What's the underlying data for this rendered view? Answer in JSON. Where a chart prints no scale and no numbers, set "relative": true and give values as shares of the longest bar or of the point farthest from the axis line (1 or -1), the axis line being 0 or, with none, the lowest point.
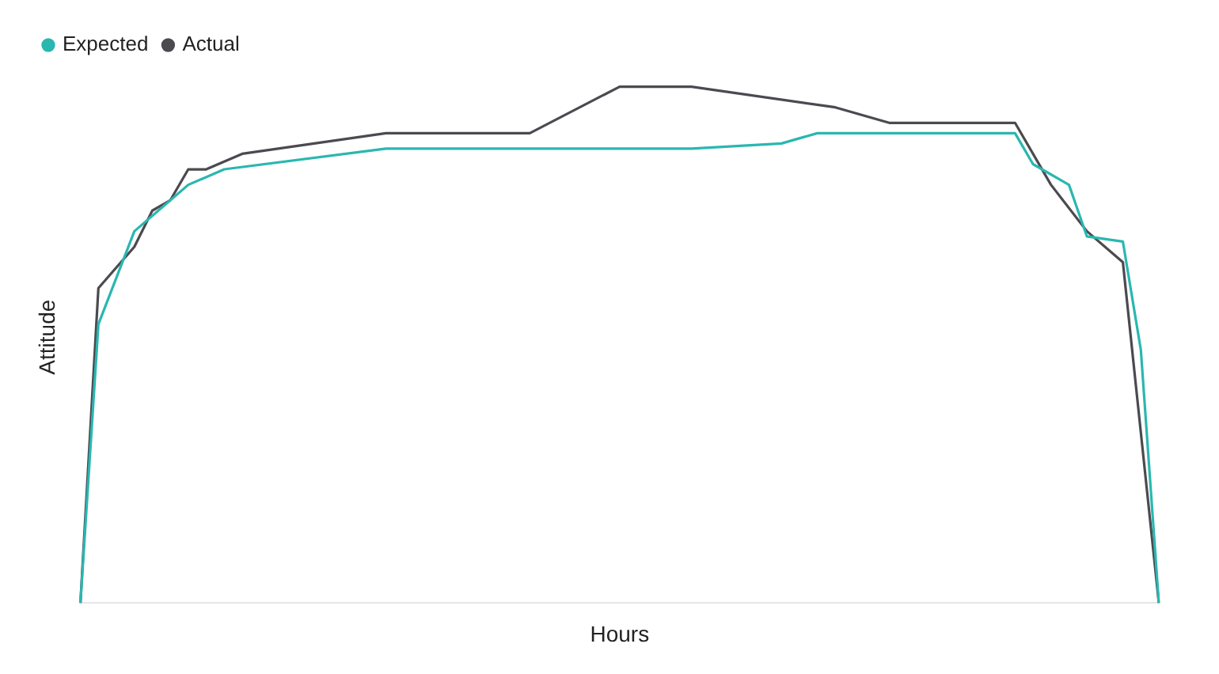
{
  "chart_data": {
    "type": "line",
    "xlabel": "Hours",
    "ylabel": "Attitude",
    "relative": true,
    "legend": "top left",
    "marker": "none",
    "line_style": "solid",
    "categories": [
      null,
      null,
      null,
      null,
      null,
      null,
      null,
      null,
      null,
      null,
      null,
      null,
      null,
      null,
      null,
      null,
      null,
      null,
      null,
      null,
      null,
      null,
      null,
      null,
      null,
      null,
      null,
      null,
      null,
      null,
      null,
      null,
      null,
      null,
      null,
      null,
      null,
      null,
      null,
      null,
      null,
      null,
      null,
      null,
      null,
      null,
      null,
      null,
      null,
      null,
      null,
      null,
      null,
      null,
      null,
      null,
      null,
      null,
      null,
      null,
      null
    ],
    "series": [
      {
        "name": "Expected",
        "color": "#2ab7b0",
        "values": [
          0,
          0.54,
          null,
          0.72,
          null,
          null,
          0.81,
          null,
          0.84,
          null,
          null,
          null,
          null,
          null,
          null,
          null,
          null,
          0.88,
          null,
          null,
          null,
          null,
          null,
          null,
          null,
          null,
          null,
          null,
          null,
          null,
          null,
          null,
          null,
          null,
          0.88,
          null,
          null,
          null,
          null,
          0.89,
          null,
          0.91,
          null,
          null,
          null,
          null,
          null,
          null,
          null,
          null,
          null,
          null,
          0.91,
          0.85,
          null,
          0.81,
          0.71,
          null,
          0.7,
          0.49,
          0
        ]
      },
      {
        "name": "Actual",
        "color": "#4a4a50",
        "values": [
          0,
          0.61,
          null,
          0.69,
          0.76,
          0.78,
          0.84,
          0.84,
          null,
          0.87,
          null,
          null,
          null,
          null,
          null,
          null,
          null,
          0.91,
          null,
          null,
          null,
          null,
          null,
          null,
          null,
          0.91,
          null,
          null,
          null,
          null,
          1,
          null,
          null,
          null,
          1,
          null,
          null,
          null,
          null,
          null,
          null,
          null,
          0.96,
          null,
          null,
          0.93,
          null,
          null,
          null,
          null,
          null,
          null,
          0.93,
          null,
          0.81,
          null,
          0.72,
          null,
          0.66,
          null,
          0
        ]
      }
    ]
  }
}
